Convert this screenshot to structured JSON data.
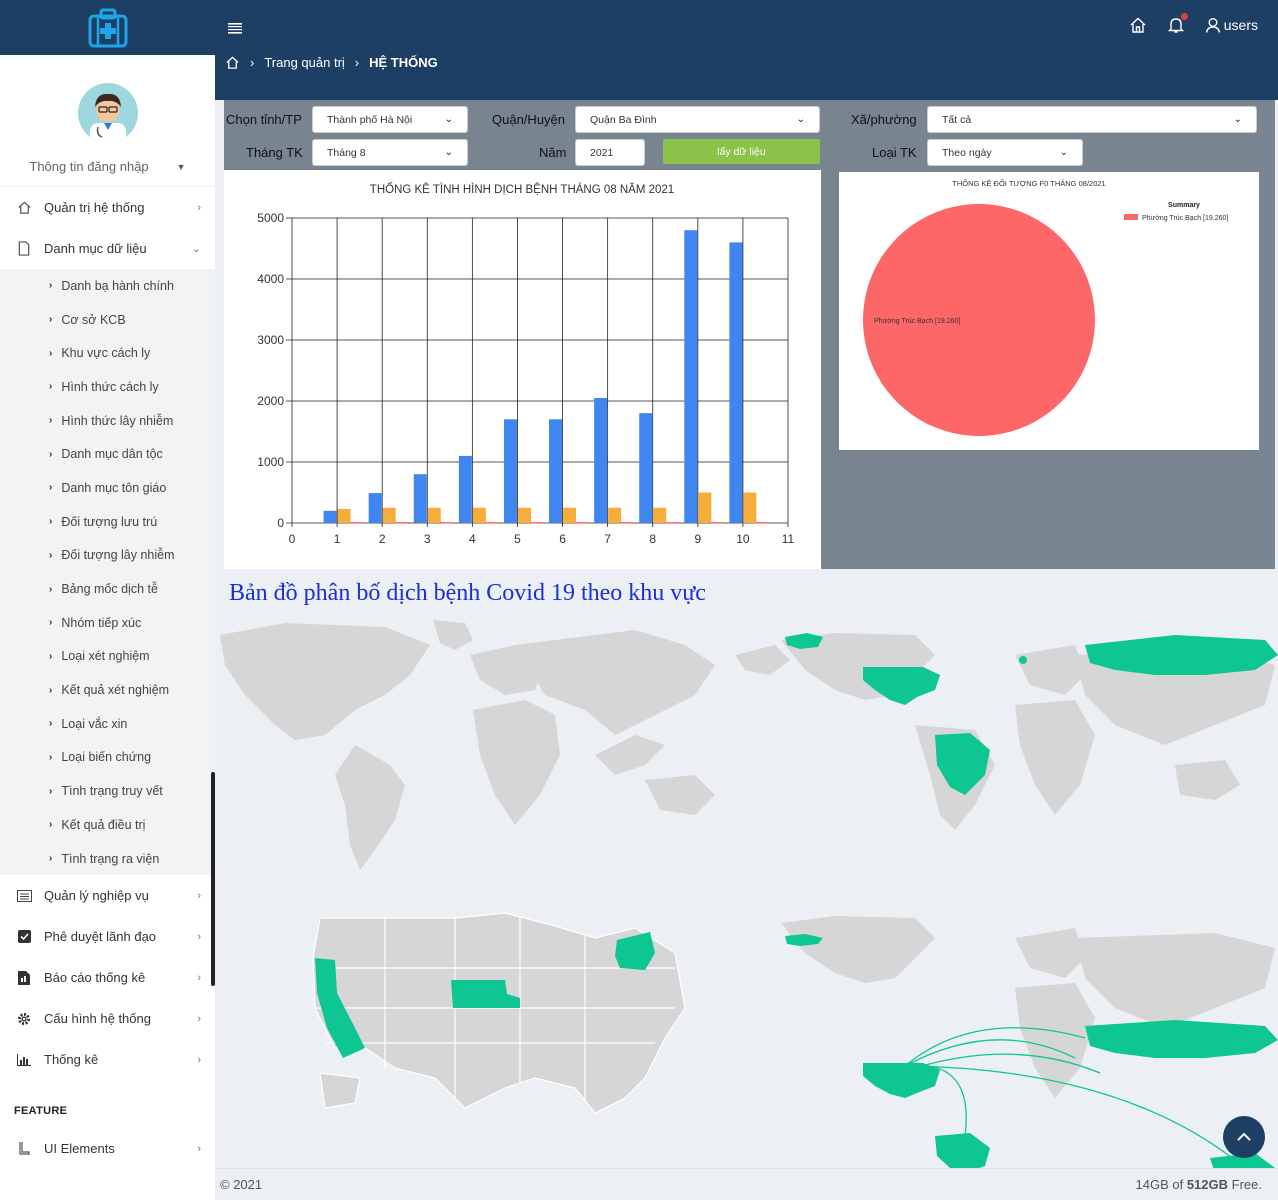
{
  "sidebar": {
    "profile_label": "Thông tin đăng nhập",
    "menu": [
      {
        "label": "Quản trị hệ thống",
        "icon": "home-icon"
      },
      {
        "label": "Danh mục dữ liệu",
        "icon": "file-icon"
      }
    ],
    "sub_items": [
      "Danh bạ hành chính",
      "Cơ sở KCB",
      "Khu vực cách ly",
      "Hình thức cách ly",
      "Hình thức lây nhiễm",
      "Danh mục dân tộc",
      "Danh mục tôn giáo",
      "Đối tượng lưu trú",
      "Đối tượng lây nhiễm",
      "Bảng mốc dịch tễ",
      "Nhóm tiếp xúc",
      "Loại xét nghiệm",
      "Kết quả xét nghiệm",
      "Loại vắc xin",
      "Loại biến chứng",
      "Tình trạng truy vết",
      "Kết quả điều trị",
      "Tình trạng ra viện"
    ],
    "menu2": [
      {
        "label": "Quản lý nghiệp vụ",
        "icon": "list-icon"
      },
      {
        "label": "Phê duyệt lãnh đạo",
        "icon": "check-icon"
      },
      {
        "label": "Báo cáo thống kê",
        "icon": "report-icon"
      },
      {
        "label": "Cấu hình hệ thống",
        "icon": "gear-icon"
      },
      {
        "label": "Thống kê",
        "icon": "chart-icon"
      }
    ],
    "feature_label": "FEATURE",
    "feature_item": "UI Elements"
  },
  "topbar": {
    "user_label": "users"
  },
  "breadcrumb": {
    "item1": "Trang quản trị",
    "item2": "HỆ THỐNG"
  },
  "filters": {
    "province_label": "Chọn tỉnh/TP",
    "province_value": "Thành phố Hà Nội",
    "district_label": "Quận/Huyện",
    "district_value": "Quận Ba Đình",
    "ward_label": "Xã/phường",
    "ward_value": "Tất cả",
    "month_label": "Tháng TK",
    "month_value": "Tháng 8",
    "year_label": "Năm",
    "year_value": "2021",
    "button_label": "lấy dữ liệu",
    "type_label": "Loại TK",
    "type_value": "Theo ngày"
  },
  "map_title": "Bản đồ phân bố dịch bệnh Covid 19 theo khu vực",
  "footer": {
    "copyright": "© 2021",
    "storage_prefix": "14GB of ",
    "storage_total": "512GB",
    "storage_suffix": " Free."
  },
  "colors": {
    "navy": "#1e3f64",
    "blue_bar": "#3f86f0",
    "orange_bar": "#f7ad3c",
    "pie": "#fe6767",
    "map_highlight": "#0dc692",
    "map_land": "#d6d6d6"
  },
  "chart_data": [
    {
      "type": "bar",
      "title": "THỐNG KÊ TÌNH HÌNH DỊCH BỆNH THÁNG 08 NĂM 2021",
      "x": [
        1,
        2,
        3,
        4,
        5,
        6,
        7,
        8,
        9,
        10
      ],
      "series": [
        {
          "values": [
            200,
            490,
            800,
            1100,
            1700,
            1700,
            2050,
            1800,
            4800,
            4600
          ],
          "color": "#3f86f0"
        },
        {
          "values": [
            230,
            250,
            250,
            250,
            250,
            250,
            250,
            250,
            500,
            500
          ],
          "color": "#f7ad3c"
        },
        {
          "values": [
            15,
            15,
            15,
            15,
            15,
            15,
            15,
            15,
            15,
            15
          ],
          "color": "#fe6767"
        }
      ],
      "xlim": [
        0,
        11
      ],
      "ylim": [
        0,
        5000
      ],
      "xticks": [
        0,
        1,
        2,
        3,
        4,
        5,
        6,
        7,
        8,
        9,
        10,
        11
      ],
      "yticks": [
        0,
        1000,
        2000,
        3000,
        4000,
        5000
      ],
      "grid": true
    },
    {
      "type": "pie",
      "title": "THỐNG KÊ ĐỐI TƯỢNG F0 THÁNG 08/2021",
      "legend_title": "Summary",
      "slices": [
        {
          "label": "Phường Trúc Bạch [19.260]",
          "value": 19.26,
          "color": "#fe6767"
        }
      ]
    }
  ]
}
